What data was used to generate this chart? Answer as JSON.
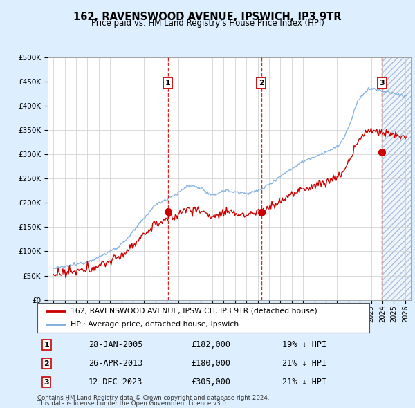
{
  "title": "162, RAVENSWOOD AVENUE, IPSWICH, IP3 9TR",
  "subtitle": "Price paid vs. HM Land Registry's House Price Index (HPI)",
  "transactions": [
    {
      "num": 1,
      "date_str": "28-JAN-2005",
      "price": 182000,
      "hpi_rel": "19% ↓ HPI",
      "date_x": 2005.08
    },
    {
      "num": 2,
      "date_str": "26-APR-2013",
      "price": 180000,
      "hpi_rel": "21% ↓ HPI",
      "date_x": 2013.32
    },
    {
      "num": 3,
      "date_str": "12-DEC-2023",
      "price": 305000,
      "hpi_rel": "21% ↓ HPI",
      "date_x": 2023.95
    }
  ],
  "legend_line1": "162, RAVENSWOOD AVENUE, IPSWICH, IP3 9TR (detached house)",
  "legend_line2": "HPI: Average price, detached house, Ipswich",
  "footer1": "Contains HM Land Registry data © Crown copyright and database right 2024.",
  "footer2": "This data is licensed under the Open Government Licence v3.0.",
  "ylim": [
    0,
    500000
  ],
  "xlim_start": 1994.5,
  "xlim_end": 2026.5,
  "hatch_start": 2024.0,
  "red_color": "#cc0000",
  "blue_color": "#7aade0",
  "bg_color": "#ddeeff",
  "plot_bg": "#ffffff",
  "grid_color": "#cccccc",
  "figsize": [
    6.0,
    5.9
  ],
  "dpi": 100
}
